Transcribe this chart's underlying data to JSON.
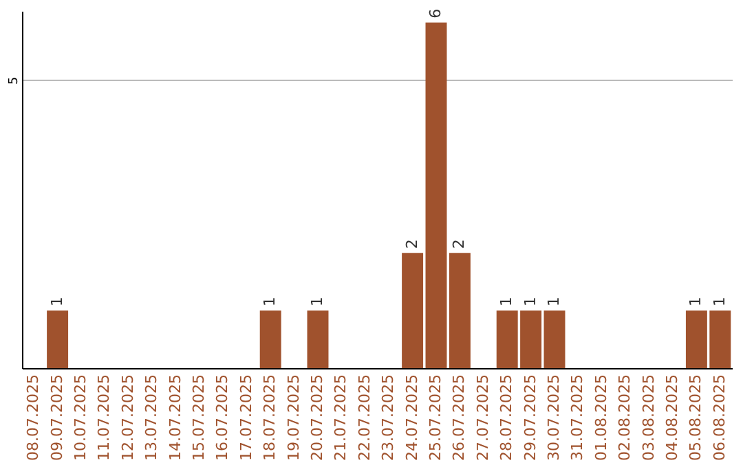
{
  "chart_data": {
    "type": "bar",
    "categories": [
      "08.07.2025",
      "09.07.2025",
      "10.07.2025",
      "11.07.2025",
      "12.07.2025",
      "13.07.2025",
      "14.07.2025",
      "15.07.2025",
      "16.07.2025",
      "17.07.2025",
      "18.07.2025",
      "19.07.2025",
      "20.07.2025",
      "21.07.2025",
      "22.07.2025",
      "23.07.2025",
      "24.07.2025",
      "25.07.2025",
      "26.07.2025",
      "27.07.2025",
      "28.07.2025",
      "29.07.2025",
      "30.07.2025",
      "31.07.2025",
      "01.08.2025",
      "02.08.2025",
      "03.08.2025",
      "04.08.2025",
      "05.08.2025",
      "06.08.2025"
    ],
    "values": [
      0,
      1,
      0,
      0,
      0,
      0,
      0,
      0,
      0,
      0,
      1,
      0,
      1,
      0,
      0,
      0,
      2,
      6,
      2,
      0,
      1,
      1,
      1,
      0,
      0,
      0,
      0,
      0,
      1,
      1
    ],
    "value_labels": [
      null,
      "1",
      null,
      null,
      null,
      null,
      null,
      null,
      null,
      null,
      "1",
      null,
      "1",
      null,
      null,
      null,
      "2",
      "6",
      "2",
      null,
      "1",
      "1",
      "1",
      null,
      null,
      null,
      null,
      null,
      "1",
      "1"
    ],
    "color": "#a0522d",
    "ylim": [
      0,
      6.2
    ],
    "yticks": [
      5
    ],
    "grid": "y"
  }
}
